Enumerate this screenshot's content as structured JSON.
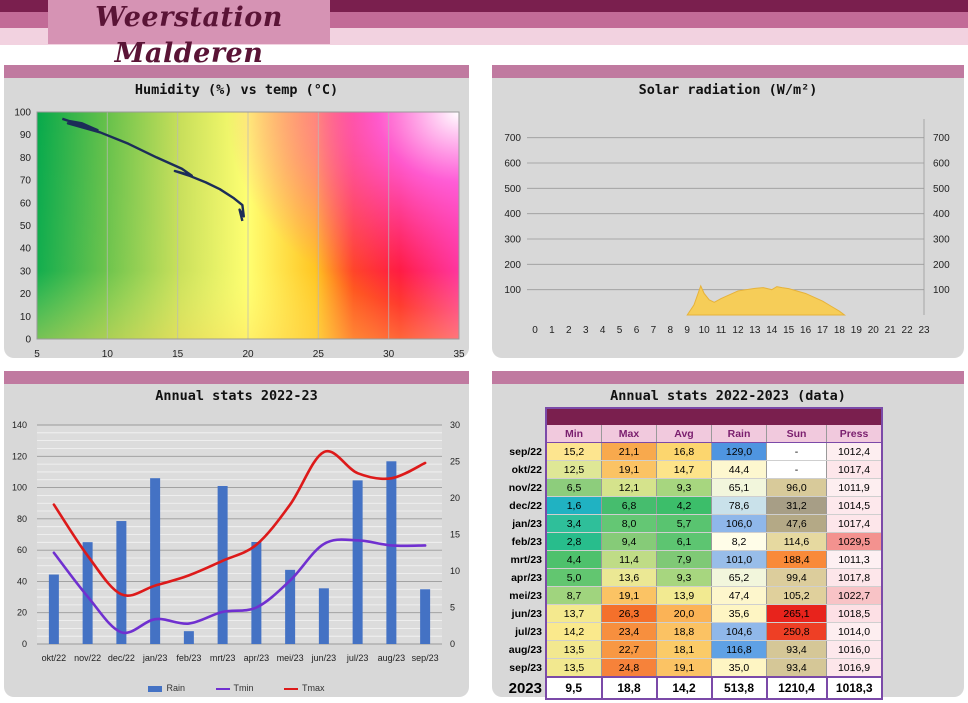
{
  "header": {
    "title": "Weerstation Malderen"
  },
  "panels": {
    "humidity": {
      "title": "Humidity (%) vs temp (°C)"
    },
    "solar": {
      "title": "Solar radiation (W/m²)"
    },
    "annual": {
      "title": "Annual stats 2022-23"
    },
    "table": {
      "title": "Annual stats 2022-2023 (data)"
    }
  },
  "chart_data": [
    {
      "type": "line",
      "title": "Humidity (%) vs temp (°C)",
      "xlim": [
        5,
        35
      ],
      "ylim": [
        0,
        100
      ],
      "xticks": [
        5,
        10,
        15,
        20,
        25,
        30,
        35
      ],
      "yticks": [
        0,
        10,
        20,
        30,
        40,
        50,
        60,
        70,
        80,
        90,
        100
      ],
      "x": [
        6.8,
        7.3,
        8.2,
        9.3,
        8.3,
        7.2,
        9.5,
        11.5,
        13.5,
        15.3,
        16.0,
        14.8,
        15.8,
        17.0,
        18.0,
        19.0,
        19.6,
        19.7,
        19.4,
        19.6
      ],
      "y": [
        97,
        96,
        95,
        92,
        94,
        95,
        91,
        86,
        80,
        75,
        72,
        74,
        72,
        69,
        66,
        62,
        59,
        54,
        57,
        52
      ]
    },
    {
      "type": "area",
      "title": "Solar radiation (W/m²)",
      "xlim": [
        0,
        23
      ],
      "ylim": [
        0,
        750
      ],
      "xticks": [
        0,
        1,
        2,
        3,
        4,
        5,
        6,
        7,
        8,
        9,
        10,
        11,
        12,
        13,
        14,
        15,
        16,
        17,
        18,
        19,
        20,
        21,
        22,
        23
      ],
      "yticks": [
        100,
        200,
        300,
        400,
        500,
        600,
        700
      ],
      "x": [
        9.0,
        9.4,
        9.8,
        10.0,
        10.3,
        10.6,
        11.0,
        12.0,
        13.0,
        13.5,
        14.0,
        14.3,
        14.6,
        15.0,
        16.0,
        17.0,
        17.5,
        18.0,
        18.3
      ],
      "y": [
        0,
        40,
        115,
        85,
        60,
        50,
        65,
        95,
        105,
        108,
        100,
        112,
        108,
        104,
        85,
        55,
        35,
        15,
        0
      ]
    },
    {
      "type": "bar",
      "title": "Annual stats 2022-23",
      "categories": [
        "okt/22",
        "nov/22",
        "dec/22",
        "jan/23",
        "feb/23",
        "mrt/23",
        "apr/23",
        "mei/23",
        "jun/23",
        "jul/23",
        "aug/23",
        "sep/23"
      ],
      "ylim_left": [
        0,
        140
      ],
      "ylim_right": [
        0,
        30
      ],
      "yticks_left": [
        0,
        20,
        40,
        60,
        80,
        100,
        120,
        140
      ],
      "yticks_right": [
        0,
        5,
        10,
        15,
        20,
        25,
        30
      ],
      "series": [
        {
          "name": "Rain",
          "axis": "left",
          "values": [
            44.4,
            65.1,
            78.6,
            106.0,
            8.2,
            101.0,
            65.2,
            47.4,
            35.6,
            104.6,
            116.8,
            35.0
          ]
        },
        {
          "name": "Tmin",
          "axis": "right",
          "values": [
            12.5,
            6.5,
            1.6,
            3.4,
            2.8,
            4.4,
            5.0,
            8.7,
            13.7,
            14.2,
            13.5,
            13.5
          ]
        },
        {
          "name": "Tmax",
          "axis": "right",
          "values": [
            19.1,
            12.1,
            6.8,
            8.0,
            9.4,
            11.4,
            13.6,
            19.1,
            26.3,
            23.4,
            22.7,
            24.8
          ]
        }
      ]
    },
    {
      "type": "table",
      "title": "Annual stats 2022-2023 (data)",
      "columns": [
        "Min",
        "Max",
        "Avg",
        "Rain",
        "Sun",
        "Press"
      ],
      "rows": [
        {
          "month": "sep/22",
          "cells": [
            {
              "v": "15,2",
              "bg": "#fde58f"
            },
            {
              "v": "21,1",
              "bg": "#f8a94d"
            },
            {
              "v": "16,8",
              "bg": "#fcd66e"
            },
            {
              "v": "129,0",
              "bg": "#4f95e0"
            },
            {
              "v": "-",
              "bg": "#ffffff"
            },
            {
              "v": "1012,4",
              "bg": "#fdeef0"
            }
          ]
        },
        {
          "month": "okt/22",
          "cells": [
            {
              "v": "12,5",
              "bg": "#dfe796"
            },
            {
              "v": "19,1",
              "bg": "#fbc364"
            },
            {
              "v": "14,7",
              "bg": "#fde48a"
            },
            {
              "v": "44,4",
              "bg": "#fdf7cf"
            },
            {
              "v": "-",
              "bg": "#ffffff"
            },
            {
              "v": "1017,4",
              "bg": "#fde6ea"
            }
          ]
        },
        {
          "month": "nov/22",
          "cells": [
            {
              "v": "6,5",
              "bg": "#8dcd7c"
            },
            {
              "v": "12,1",
              "bg": "#d5e38c"
            },
            {
              "v": "9,3",
              "bg": "#a7d67f"
            },
            {
              "v": "65,1",
              "bg": "#f2f6dc"
            },
            {
              "v": "96,0",
              "bg": "#d8ca9a"
            },
            {
              "v": "1011,9",
              "bg": "#fdeef0"
            }
          ]
        },
        {
          "month": "dec/22",
          "cells": [
            {
              "v": "1,6",
              "bg": "#20b2c2"
            },
            {
              "v": "6,8",
              "bg": "#46bd6e"
            },
            {
              "v": "4,2",
              "bg": "#3cbe6a"
            },
            {
              "v": "78,6",
              "bg": "#c9e1ea"
            },
            {
              "v": "31,2",
              "bg": "#a79e86"
            },
            {
              "v": "1014,5",
              "bg": "#fde8ec"
            }
          ]
        },
        {
          "month": "jan/23",
          "cells": [
            {
              "v": "3,4",
              "bg": "#2fbf9a"
            },
            {
              "v": "8,0",
              "bg": "#64c774"
            },
            {
              "v": "5,7",
              "bg": "#59c470"
            },
            {
              "v": "106,0",
              "bg": "#8fb7ea"
            },
            {
              "v": "47,6",
              "bg": "#b4a986"
            },
            {
              "v": "1017,4",
              "bg": "#fde6ea"
            }
          ]
        },
        {
          "month": "feb/23",
          "cells": [
            {
              "v": "2,8",
              "bg": "#28bd8c"
            },
            {
              "v": "9,4",
              "bg": "#86cb78"
            },
            {
              "v": "6,1",
              "bg": "#5dc571"
            },
            {
              "v": "8,2",
              "bg": "#fffde8"
            },
            {
              "v": "114,6",
              "bg": "#e6d9a0"
            },
            {
              "v": "1029,5",
              "bg": "#f3928f"
            }
          ]
        },
        {
          "month": "mrt/23",
          "cells": [
            {
              "v": "4,4",
              "bg": "#4ec16c"
            },
            {
              "v": "11,4",
              "bg": "#bfdc86"
            },
            {
              "v": "7,9",
              "bg": "#7fc976"
            },
            {
              "v": "101,0",
              "bg": "#98bde9"
            },
            {
              "v": "188,4",
              "bg": "#f98a39"
            },
            {
              "v": "1011,3",
              "bg": "#fdf0f2"
            }
          ]
        },
        {
          "month": "apr/23",
          "cells": [
            {
              "v": "5,0",
              "bg": "#62c670"
            },
            {
              "v": "13,6",
              "bg": "#ebe894"
            },
            {
              "v": "9,3",
              "bg": "#a7d67f"
            },
            {
              "v": "65,2",
              "bg": "#f2f6dc"
            },
            {
              "v": "99,4",
              "bg": "#dccd9c"
            },
            {
              "v": "1017,8",
              "bg": "#fde6ea"
            }
          ]
        },
        {
          "month": "mei/23",
          "cells": [
            {
              "v": "8,7",
              "bg": "#a0d47e"
            },
            {
              "v": "19,1",
              "bg": "#fbc364"
            },
            {
              "v": "13,9",
              "bg": "#f2ea91"
            },
            {
              "v": "47,4",
              "bg": "#fdf6cc"
            },
            {
              "v": "105,2",
              "bg": "#e0d09c"
            },
            {
              "v": "1022,7",
              "bg": "#f8c3c6"
            }
          ]
        },
        {
          "month": "jun/23",
          "cells": [
            {
              "v": "13,7",
              "bg": "#f4e98e"
            },
            {
              "v": "26,3",
              "bg": "#f4702b"
            },
            {
              "v": "20,0",
              "bg": "#fbb356"
            },
            {
              "v": "35,6",
              "bg": "#fef5c3"
            },
            {
              "v": "265,1",
              "bg": "#e8231c"
            },
            {
              "v": "1018,5",
              "bg": "#fde0e5"
            }
          ]
        },
        {
          "month": "jul/23",
          "cells": [
            {
              "v": "14,2",
              "bg": "#fae98c"
            },
            {
              "v": "23,4",
              "bg": "#f78f3e"
            },
            {
              "v": "18,8",
              "bg": "#fbc263"
            },
            {
              "v": "104,6",
              "bg": "#90b8ea"
            },
            {
              "v": "250,8",
              "bg": "#ee3f25"
            },
            {
              "v": "1014,0",
              "bg": "#fdeef0"
            }
          ]
        },
        {
          "month": "aug/23",
          "cells": [
            {
              "v": "13,5",
              "bg": "#f2e88f"
            },
            {
              "v": "22,7",
              "bg": "#f89843"
            },
            {
              "v": "18,1",
              "bg": "#fbcb68"
            },
            {
              "v": "116,8",
              "bg": "#5fa1e5"
            },
            {
              "v": "93,4",
              "bg": "#d5c797"
            },
            {
              "v": "1016,0",
              "bg": "#fde8ec"
            }
          ]
        },
        {
          "month": "sep/23",
          "cells": [
            {
              "v": "13,5",
              "bg": "#f2e88f"
            },
            {
              "v": "24,8",
              "bg": "#f6823a"
            },
            {
              "v": "19,1",
              "bg": "#fbc364"
            },
            {
              "v": "35,0",
              "bg": "#fef5c3"
            },
            {
              "v": "93,4",
              "bg": "#d5c797"
            },
            {
              "v": "1016,9",
              "bg": "#fde6ea"
            }
          ]
        }
      ],
      "total": {
        "label": "2023",
        "values": [
          "9,5",
          "18,8",
          "14,2",
          "513,8",
          "1210,4",
          "1018,3"
        ]
      }
    }
  ],
  "colors": {
    "rain": "#4472c4",
    "tmin": "#7030d0",
    "tmax": "#dd1a1a",
    "humidity_line": "#1c2d58",
    "solar_fill": "#f6cd58",
    "header_dark": "#7a1f4e",
    "table_border": "#7b4aa8"
  }
}
